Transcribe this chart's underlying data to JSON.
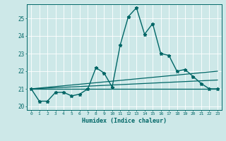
{
  "xlabel": "Humidex (Indice chaleur)",
  "ylabel": "",
  "background_color": "#cde8e8",
  "grid_color": "#ffffff",
  "line_color": "#006666",
  "xlim": [
    -0.5,
    23.5
  ],
  "ylim": [
    19.8,
    25.8
  ],
  "yticks": [
    20,
    21,
    22,
    23,
    24,
    25
  ],
  "xticks": [
    0,
    1,
    2,
    3,
    4,
    5,
    6,
    7,
    8,
    9,
    10,
    11,
    12,
    13,
    14,
    15,
    16,
    17,
    18,
    19,
    20,
    21,
    22,
    23
  ],
  "series": [
    {
      "x": [
        0,
        1,
        2,
        3,
        4,
        5,
        6,
        7,
        8,
        9,
        10,
        11,
        12,
        13,
        14,
        15,
        16,
        17,
        18,
        19,
        20,
        21,
        22,
        23
      ],
      "y": [
        21.0,
        20.3,
        20.3,
        20.8,
        20.8,
        20.6,
        20.7,
        21.0,
        22.2,
        21.9,
        21.1,
        23.5,
        25.1,
        25.6,
        24.1,
        24.7,
        23.0,
        22.9,
        22.0,
        22.1,
        21.7,
        21.3,
        21.0,
        21.0
      ],
      "marker": "*",
      "markersize": 3.5,
      "linewidth": 1.0
    },
    {
      "x": [
        0,
        23
      ],
      "y": [
        21.0,
        21.0
      ],
      "marker": null,
      "markersize": 0,
      "linewidth": 0.9
    },
    {
      "x": [
        0,
        23
      ],
      "y": [
        21.0,
        21.5
      ],
      "marker": null,
      "markersize": 0,
      "linewidth": 0.9
    },
    {
      "x": [
        0,
        23
      ],
      "y": [
        21.0,
        22.0
      ],
      "marker": null,
      "markersize": 0,
      "linewidth": 0.9
    }
  ]
}
